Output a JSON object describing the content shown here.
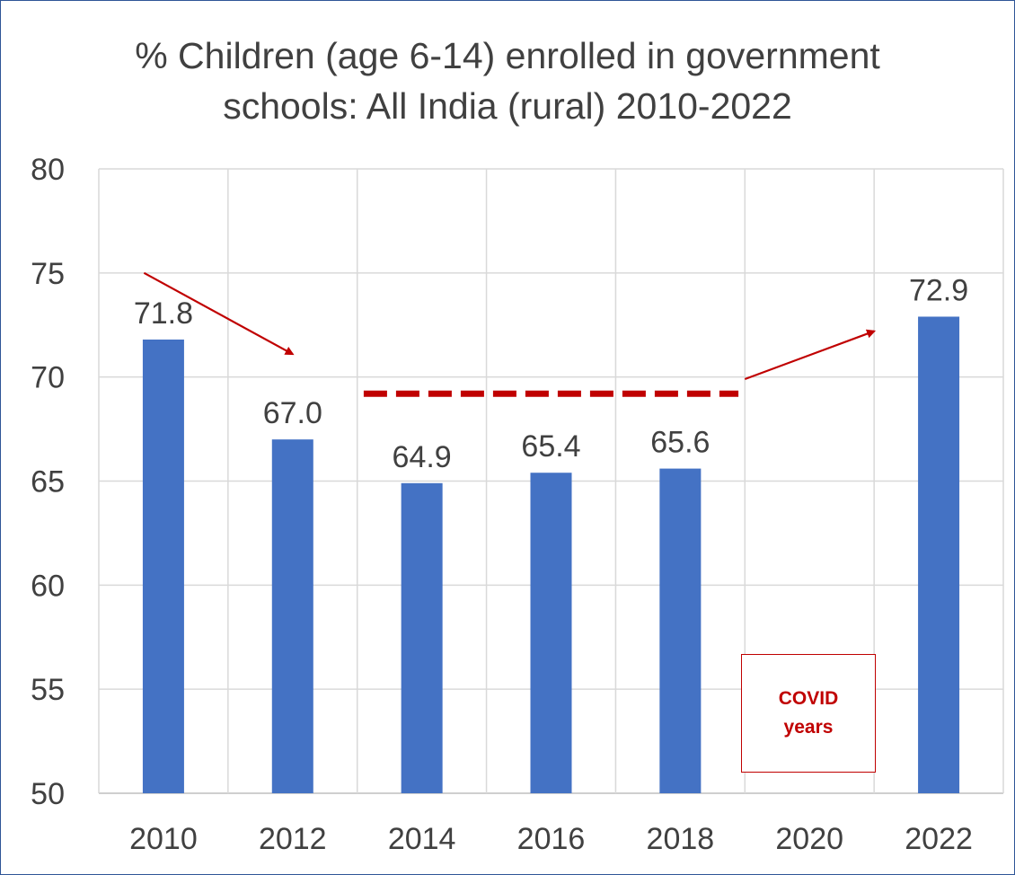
{
  "chart_data": {
    "type": "bar",
    "title_lines": [
      "% Children (age 6-14) enrolled in government",
      "schools: All India (rural) 2010-2022"
    ],
    "categories": [
      "2010",
      "2012",
      "2014",
      "2016",
      "2018",
      "2020",
      "2022"
    ],
    "values": [
      71.8,
      67.0,
      64.9,
      65.4,
      65.6,
      null,
      72.9
    ],
    "data_labels": [
      "71.8",
      "67.0",
      "64.9",
      "65.4",
      "65.6",
      "",
      "72.9"
    ],
    "ylim": [
      50,
      80
    ],
    "yticks": [
      "50",
      "55",
      "60",
      "65",
      "70",
      "75",
      "80"
    ],
    "grid": true,
    "xlabel": "",
    "ylabel": "",
    "bar_color": "#4472c4",
    "annotation_color": "#c00000",
    "annotations": {
      "covid_box": [
        "COVID",
        "years"
      ]
    }
  }
}
